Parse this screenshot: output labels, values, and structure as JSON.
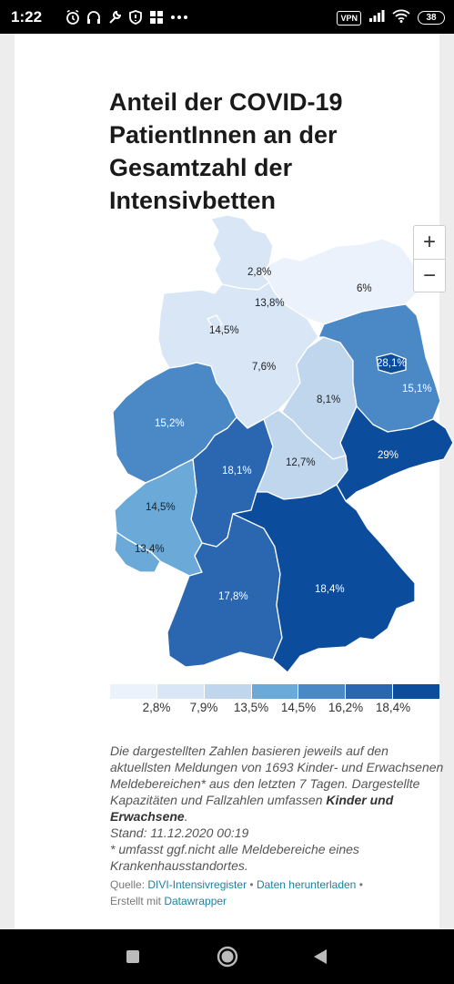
{
  "status_bar": {
    "time": "1:22",
    "vpn": "VPN",
    "battery": "38",
    "icons": [
      "alarm-icon",
      "headset-icon",
      "wrench-icon",
      "shield-icon",
      "windows-icon",
      "more-icon",
      "signal-icon",
      "wifi-icon"
    ]
  },
  "title": "Anteil der COVID-19 PatientInnen an der Gesamtzahl der Intensivbetten",
  "zoom": {
    "in": "+",
    "out": "−"
  },
  "colors": {
    "c1": "#ecf2fb",
    "c2": "#d9e6f5",
    "c3": "#bfd6ec",
    "c4": "#6aa9d8",
    "c5": "#4b88c6",
    "c6": "#2b67b0",
    "c7": "#0b4d9c"
  },
  "map": {
    "regions": [
      {
        "name": "Schleswig-Holstein",
        "value": "2,8%"
      },
      {
        "name": "Hamburg",
        "value": "13,8%"
      },
      {
        "name": "Mecklenburg-Vorpommern",
        "value": "6%"
      },
      {
        "name": "Niedersachsen",
        "value": "14,5%"
      },
      {
        "name": "Bremen",
        "value": "7,6%"
      },
      {
        "name": "Berlin",
        "value": "28,1%"
      },
      {
        "name": "Brandenburg",
        "value": "15,1%"
      },
      {
        "name": "Sachsen-Anhalt",
        "value": "8,1%"
      },
      {
        "name": "Nordrhein-Westfalen",
        "value": "15,2%"
      },
      {
        "name": "Hessen",
        "value": "18,1%"
      },
      {
        "name": "Thüringen",
        "value": "12,7%"
      },
      {
        "name": "Sachsen",
        "value": "29%"
      },
      {
        "name": "Rheinland-Pfalz",
        "value": "14,5%"
      },
      {
        "name": "Saarland",
        "value": "13,4%"
      },
      {
        "name": "Baden-Württemberg",
        "value": "17,8%"
      },
      {
        "name": "Bayern",
        "value": "18,4%"
      }
    ]
  },
  "legend": {
    "labels": [
      "2,8%",
      "7,9%",
      "13,5%",
      "14,5%",
      "16,2%",
      "18,4%"
    ]
  },
  "note": {
    "text1": "Die dargestellten Zahlen basieren jeweils auf den aktuellsten Meldungen von 1693 Kinder- und Erwachsenen Meldebereichen* aus den letzten 7 Tagen. Dargestellte Kapazitäten und Fallzahlen umfassen ",
    "bold": "Kinder und Erwachsene",
    "text2": ".",
    "stand": "Stand: 11.12.2020 00:19",
    "footnote": "* umfasst ggf.nicht alle Meldebereiche eines Krankenhausstandortes."
  },
  "source": {
    "prefix": "Quelle: ",
    "link1": "DIVI-Intensivregister",
    "sep": " • ",
    "link2": "Daten herunterladen",
    "sep2": " •",
    "created": "Erstellt mit ",
    "link3": "Datawrapper"
  }
}
